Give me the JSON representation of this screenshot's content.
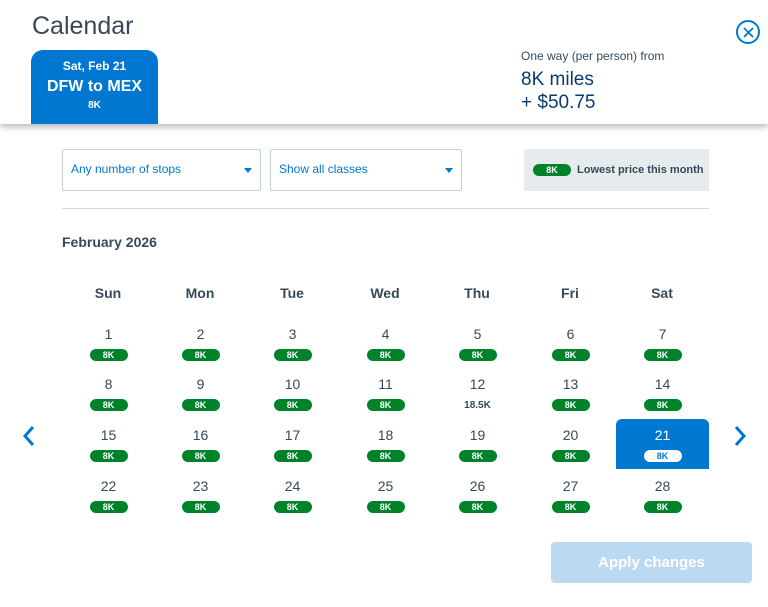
{
  "header": {
    "title": "Calendar",
    "close_icon": "close-circle-icon",
    "tab": {
      "date": "Sat, Feb 21",
      "route": "DFW to MEX",
      "price": "8K"
    },
    "fare": {
      "label": "One way (per person) from",
      "miles": "8K miles",
      "cash": "+ $50.75"
    }
  },
  "filters": {
    "stops": "Any number of stops",
    "classes": "Show all classes",
    "legend_pill": "8K",
    "legend_text": "Lowest price this month"
  },
  "calendar": {
    "month": "February 2026",
    "weekdays": [
      "Sun",
      "Mon",
      "Tue",
      "Wed",
      "Thu",
      "Fri",
      "Sat"
    ],
    "selected_day": "21",
    "weeks": [
      [
        {
          "day": "1",
          "price": "8K",
          "lowest": true
        },
        {
          "day": "2",
          "price": "8K",
          "lowest": true
        },
        {
          "day": "3",
          "price": "8K",
          "lowest": true
        },
        {
          "day": "4",
          "price": "8K",
          "lowest": true
        },
        {
          "day": "5",
          "price": "8K",
          "lowest": true
        },
        {
          "day": "6",
          "price": "8K",
          "lowest": true
        },
        {
          "day": "7",
          "price": "8K",
          "lowest": true
        }
      ],
      [
        {
          "day": "8",
          "price": "8K",
          "lowest": true
        },
        {
          "day": "9",
          "price": "8K",
          "lowest": true
        },
        {
          "day": "10",
          "price": "8K",
          "lowest": true
        },
        {
          "day": "11",
          "price": "8K",
          "lowest": true
        },
        {
          "day": "12",
          "price": "18.5K",
          "lowest": false
        },
        {
          "day": "13",
          "price": "8K",
          "lowest": true
        },
        {
          "day": "14",
          "price": "8K",
          "lowest": true
        }
      ],
      [
        {
          "day": "15",
          "price": "8K",
          "lowest": true
        },
        {
          "day": "16",
          "price": "8K",
          "lowest": true
        },
        {
          "day": "17",
          "price": "8K",
          "lowest": true
        },
        {
          "day": "18",
          "price": "8K",
          "lowest": true
        },
        {
          "day": "19",
          "price": "8K",
          "lowest": true
        },
        {
          "day": "20",
          "price": "8K",
          "lowest": true
        },
        {
          "day": "21",
          "price": "8K",
          "lowest": true
        }
      ],
      [
        {
          "day": "22",
          "price": "8K",
          "lowest": true
        },
        {
          "day": "23",
          "price": "8K",
          "lowest": true
        },
        {
          "day": "24",
          "price": "8K",
          "lowest": true
        },
        {
          "day": "25",
          "price": "8K",
          "lowest": true
        },
        {
          "day": "26",
          "price": "8K",
          "lowest": true
        },
        {
          "day": "27",
          "price": "8K",
          "lowest": true
        },
        {
          "day": "28",
          "price": "8K",
          "lowest": true
        }
      ]
    ],
    "prev_icon": "chevron-left-icon",
    "next_icon": "chevron-right-icon"
  },
  "footer": {
    "apply_label": "Apply changes"
  },
  "colors": {
    "accent": "#0078d2",
    "lowest_price": "#00822b",
    "apply_disabled": "#bcd9f2",
    "text": "#36495a"
  }
}
